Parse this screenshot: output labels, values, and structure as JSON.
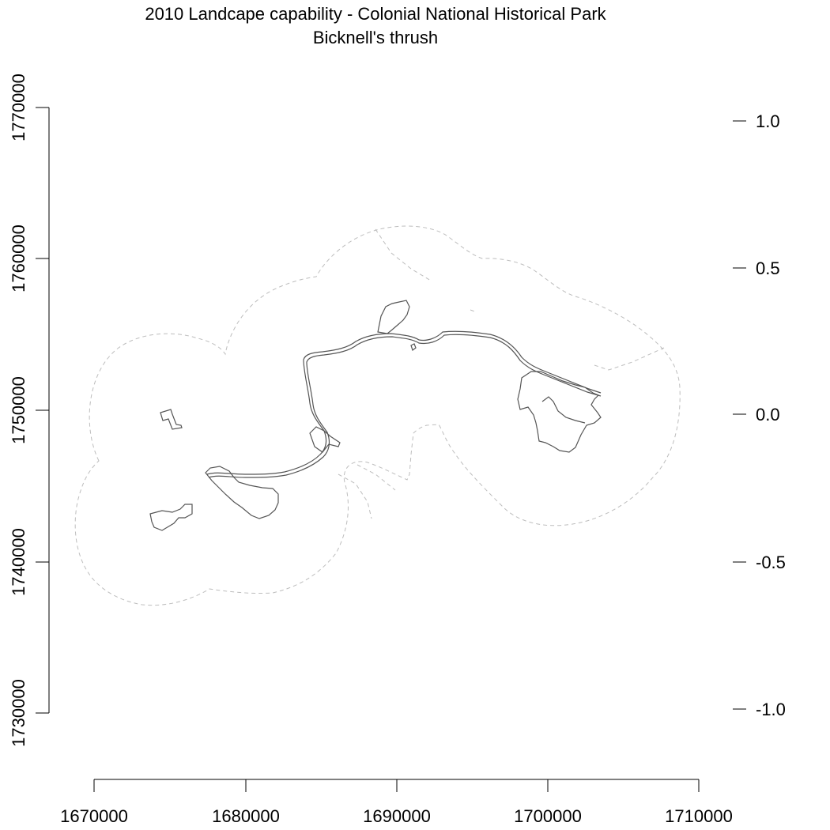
{
  "title": {
    "line1": "2010 Landcape capability - Colonial National Historical Park",
    "line2": "Bicknell's thrush"
  },
  "map": {
    "x_ticks": [
      "1670000",
      "1680000",
      "1690000",
      "1700000",
      "1710000"
    ],
    "y_ticks": [
      "1730000",
      "1740000",
      "1750000",
      "1760000",
      "1770000"
    ],
    "legend_ticks": [
      "1.0",
      "0.5",
      "0.0",
      "-0.5",
      "-1.0"
    ],
    "x_range": [
      1670000,
      1710000
    ],
    "y_range": [
      1730000,
      1770000
    ],
    "legend_range": [
      -1.0,
      1.0
    ],
    "buffer_style": "dashed light gray",
    "park_boundary_style": "solid dark gray"
  }
}
